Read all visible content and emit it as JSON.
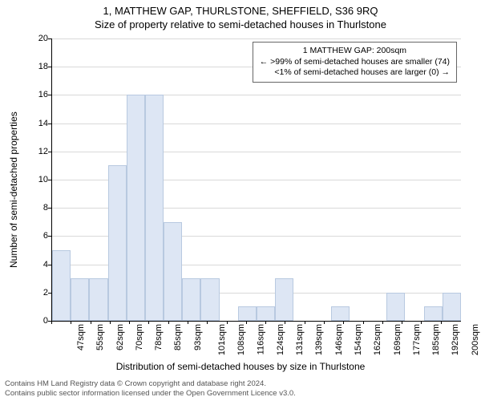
{
  "title_main": "1, MATTHEW GAP, THURLSTONE, SHEFFIELD, S36 9RQ",
  "title_sub": "Size of property relative to semi-detached houses in Thurlstone",
  "yaxis_label": "Number of semi-detached properties",
  "xaxis_label": "Distribution of semi-detached houses by size in Thurlstone",
  "chart": {
    "type": "histogram",
    "background_color": "#ffffff",
    "bar_color": "#dde6f4",
    "bar_border_color": "#b8c9e0",
    "grid_color": "#d9d9d9",
    "axis_color": "#000000",
    "ylim": [
      0,
      20
    ],
    "ytick_step": 2,
    "yticks": [
      0,
      2,
      4,
      6,
      8,
      10,
      12,
      14,
      16,
      18,
      20
    ],
    "xtick_labels": [
      "47sqm",
      "55sqm",
      "62sqm",
      "70sqm",
      "78sqm",
      "85sqm",
      "93sqm",
      "101sqm",
      "108sqm",
      "116sqm",
      "124sqm",
      "131sqm",
      "139sqm",
      "146sqm",
      "154sqm",
      "162sqm",
      "169sqm",
      "177sqm",
      "185sqm",
      "192sqm",
      "200sqm"
    ],
    "bars": [
      5,
      3,
      3,
      11,
      16,
      16,
      7,
      3,
      3,
      0,
      1,
      1,
      3,
      0,
      0,
      1,
      0,
      0,
      2,
      0,
      1,
      2
    ],
    "bar_width": 1.0,
    "title_fontsize": 13,
    "label_fontsize": 12,
    "tick_fontsize": 11
  },
  "legend": {
    "line1": "1 MATTHEW GAP: 200sqm",
    "line2": "← >99% of semi-detached houses are smaller (74)",
    "line3": "<1% of semi-detached houses are larger (0) →",
    "border_color": "#666666",
    "fontsize": 10.5
  },
  "footer": {
    "line1": "Contains HM Land Registry data © Crown copyright and database right 2024.",
    "line2": "Contains public sector information licensed under the Open Government Licence v3.0.",
    "fontsize": 9.5,
    "color": "#555555"
  }
}
